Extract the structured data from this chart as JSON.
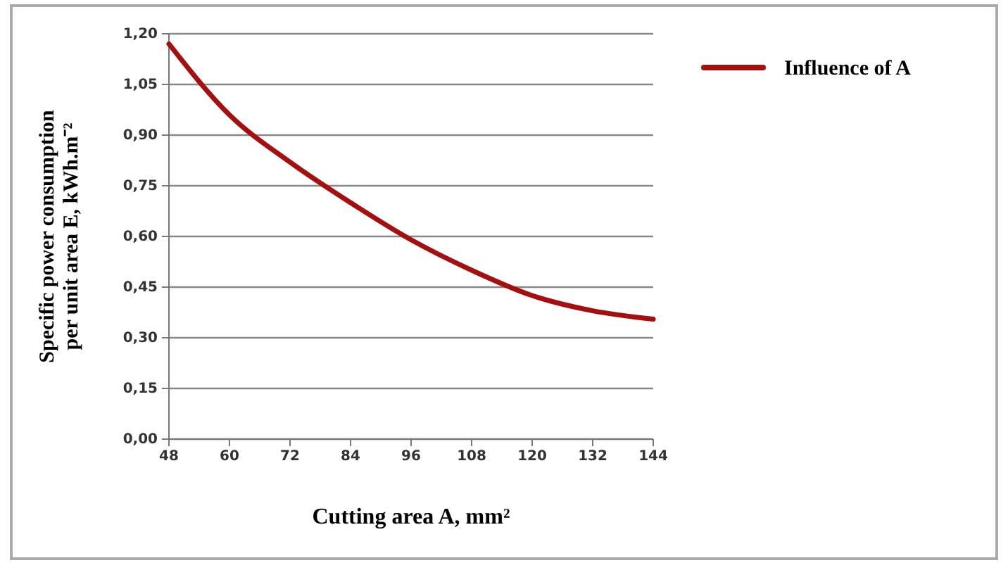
{
  "chart_data": {
    "type": "line",
    "xlabel": "Cutting area A, mm²",
    "ylabel": "Specific power consumption per unit area E, kWh.m⁻²",
    "x": [
      48,
      60,
      72,
      84,
      96,
      108,
      120,
      132,
      144
    ],
    "series": [
      {
        "name": "Influence of A",
        "color": "#a50f0f",
        "values": [
          1.17,
          0.96,
          0.82,
          0.7,
          0.59,
          0.5,
          0.425,
          0.38,
          0.355
        ]
      }
    ],
    "xlim": [
      48,
      144
    ],
    "xticks": [
      48,
      60,
      72,
      84,
      96,
      108,
      120,
      132,
      144
    ],
    "ylim": [
      0,
      1.2
    ],
    "yticks": [
      {
        "value": 0,
        "label": "0,00"
      },
      {
        "value": 0.15,
        "label": "0,15"
      },
      {
        "value": 0.3,
        "label": "0,30"
      },
      {
        "value": 0.45,
        "label": "0,45"
      },
      {
        "value": 0.6,
        "label": "0,60"
      },
      {
        "value": 0.75,
        "label": "0,75"
      },
      {
        "value": 0.9,
        "label": "0,90"
      },
      {
        "value": 1.05,
        "label": "1,05"
      },
      {
        "value": 1.2,
        "label": "1,20"
      }
    ],
    "grid": "y",
    "legend": "right",
    "marker": "none",
    "line_style": "solid"
  }
}
